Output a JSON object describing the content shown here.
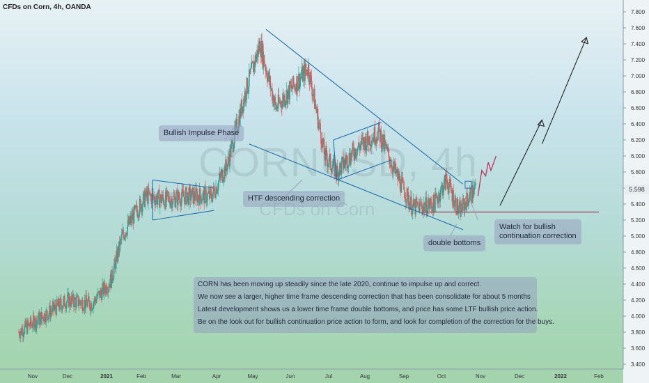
{
  "header": {
    "title": "CFDs on Corn, 4h, OANDA"
  },
  "watermark": {
    "symbol": "CORNUSD, 4h",
    "name": "CFDs on Corn"
  },
  "annotations": {
    "impulse": "Bullish Impulse Phase",
    "htf": "HTF descending correction",
    "double": "double bottoms",
    "watch": "Watch for bullish\ncontinuation correction"
  },
  "info_lines": [
    "CORN has been moving up steadily since the late 2020, continue to impulse up and correct.",
    "We now see a larger, higher time frame descending correction that has been consolidate for about 5 months",
    "Latest development shows us a lower time frame double bottoms, and price has some LTF bullish price action.",
    "Be on the look out for bullish continuation price action to form, and look for completion of the correction for the buys."
  ],
  "current_price": "5.598",
  "colors": {
    "up": "#26a69a",
    "down": "#ef5350",
    "line": "#1f6fb0",
    "support": "#a0404a",
    "forecast": "#c0305a",
    "arrow": "#222222"
  },
  "chart_data": {
    "type": "candlestick",
    "title": "CFDs on Corn, 4h, OANDA",
    "x_ticks": [
      "Nov",
      "Dec",
      "2021",
      "Feb",
      "Mar",
      "Apr",
      "May",
      "Jun",
      "Jul",
      "Aug",
      "Sep",
      "Oct",
      "Nov",
      "Dec",
      "2022",
      "Feb"
    ],
    "y_ticks": [
      3.4,
      3.6,
      3.8,
      4.0,
      4.2,
      4.4,
      4.6,
      4.8,
      5.0,
      5.2,
      5.4,
      5.6,
      5.8,
      6.0,
      6.2,
      6.4,
      6.6,
      6.8,
      7.0,
      7.2,
      7.4,
      7.6,
      7.8
    ],
    "ylim": [
      3.4,
      7.8
    ],
    "current_price": 5.598,
    "support_level": 5.3,
    "price_path": [
      {
        "date": "2020-10-20",
        "price": 3.8
      },
      {
        "date": "2020-11-10",
        "price": 4.0
      },
      {
        "date": "2020-12-01",
        "price": 4.2
      },
      {
        "date": "2020-12-20",
        "price": 4.15
      },
      {
        "date": "2021-01-05",
        "price": 4.45
      },
      {
        "date": "2021-01-15",
        "price": 5.0
      },
      {
        "date": "2021-01-25",
        "price": 5.25
      },
      {
        "date": "2021-02-05",
        "price": 5.5
      },
      {
        "date": "2021-02-20",
        "price": 5.45
      },
      {
        "date": "2021-03-10",
        "price": 5.5
      },
      {
        "date": "2021-03-28",
        "price": 5.5
      },
      {
        "date": "2021-04-10",
        "price": 5.9
      },
      {
        "date": "2021-04-25",
        "price": 6.8
      },
      {
        "date": "2021-05-07",
        "price": 7.4
      },
      {
        "date": "2021-05-20",
        "price": 6.6
      },
      {
        "date": "2021-06-05",
        "price": 6.9
      },
      {
        "date": "2021-06-15",
        "price": 7.1
      },
      {
        "date": "2021-06-28",
        "price": 6.0
      },
      {
        "date": "2021-07-08",
        "price": 5.8
      },
      {
        "date": "2021-07-25",
        "price": 6.1
      },
      {
        "date": "2021-08-12",
        "price": 6.3
      },
      {
        "date": "2021-08-25",
        "price": 5.8
      },
      {
        "date": "2021-09-08",
        "price": 5.35
      },
      {
        "date": "2021-09-25",
        "price": 5.4
      },
      {
        "date": "2021-10-05",
        "price": 5.7
      },
      {
        "date": "2021-10-15",
        "price": 5.3
      },
      {
        "date": "2021-10-28",
        "price": 5.6
      }
    ],
    "annotations": [
      "Bullish Impulse Phase",
      "HTF descending correction",
      "double bottoms",
      "Watch for bullish continuation correction"
    ]
  }
}
